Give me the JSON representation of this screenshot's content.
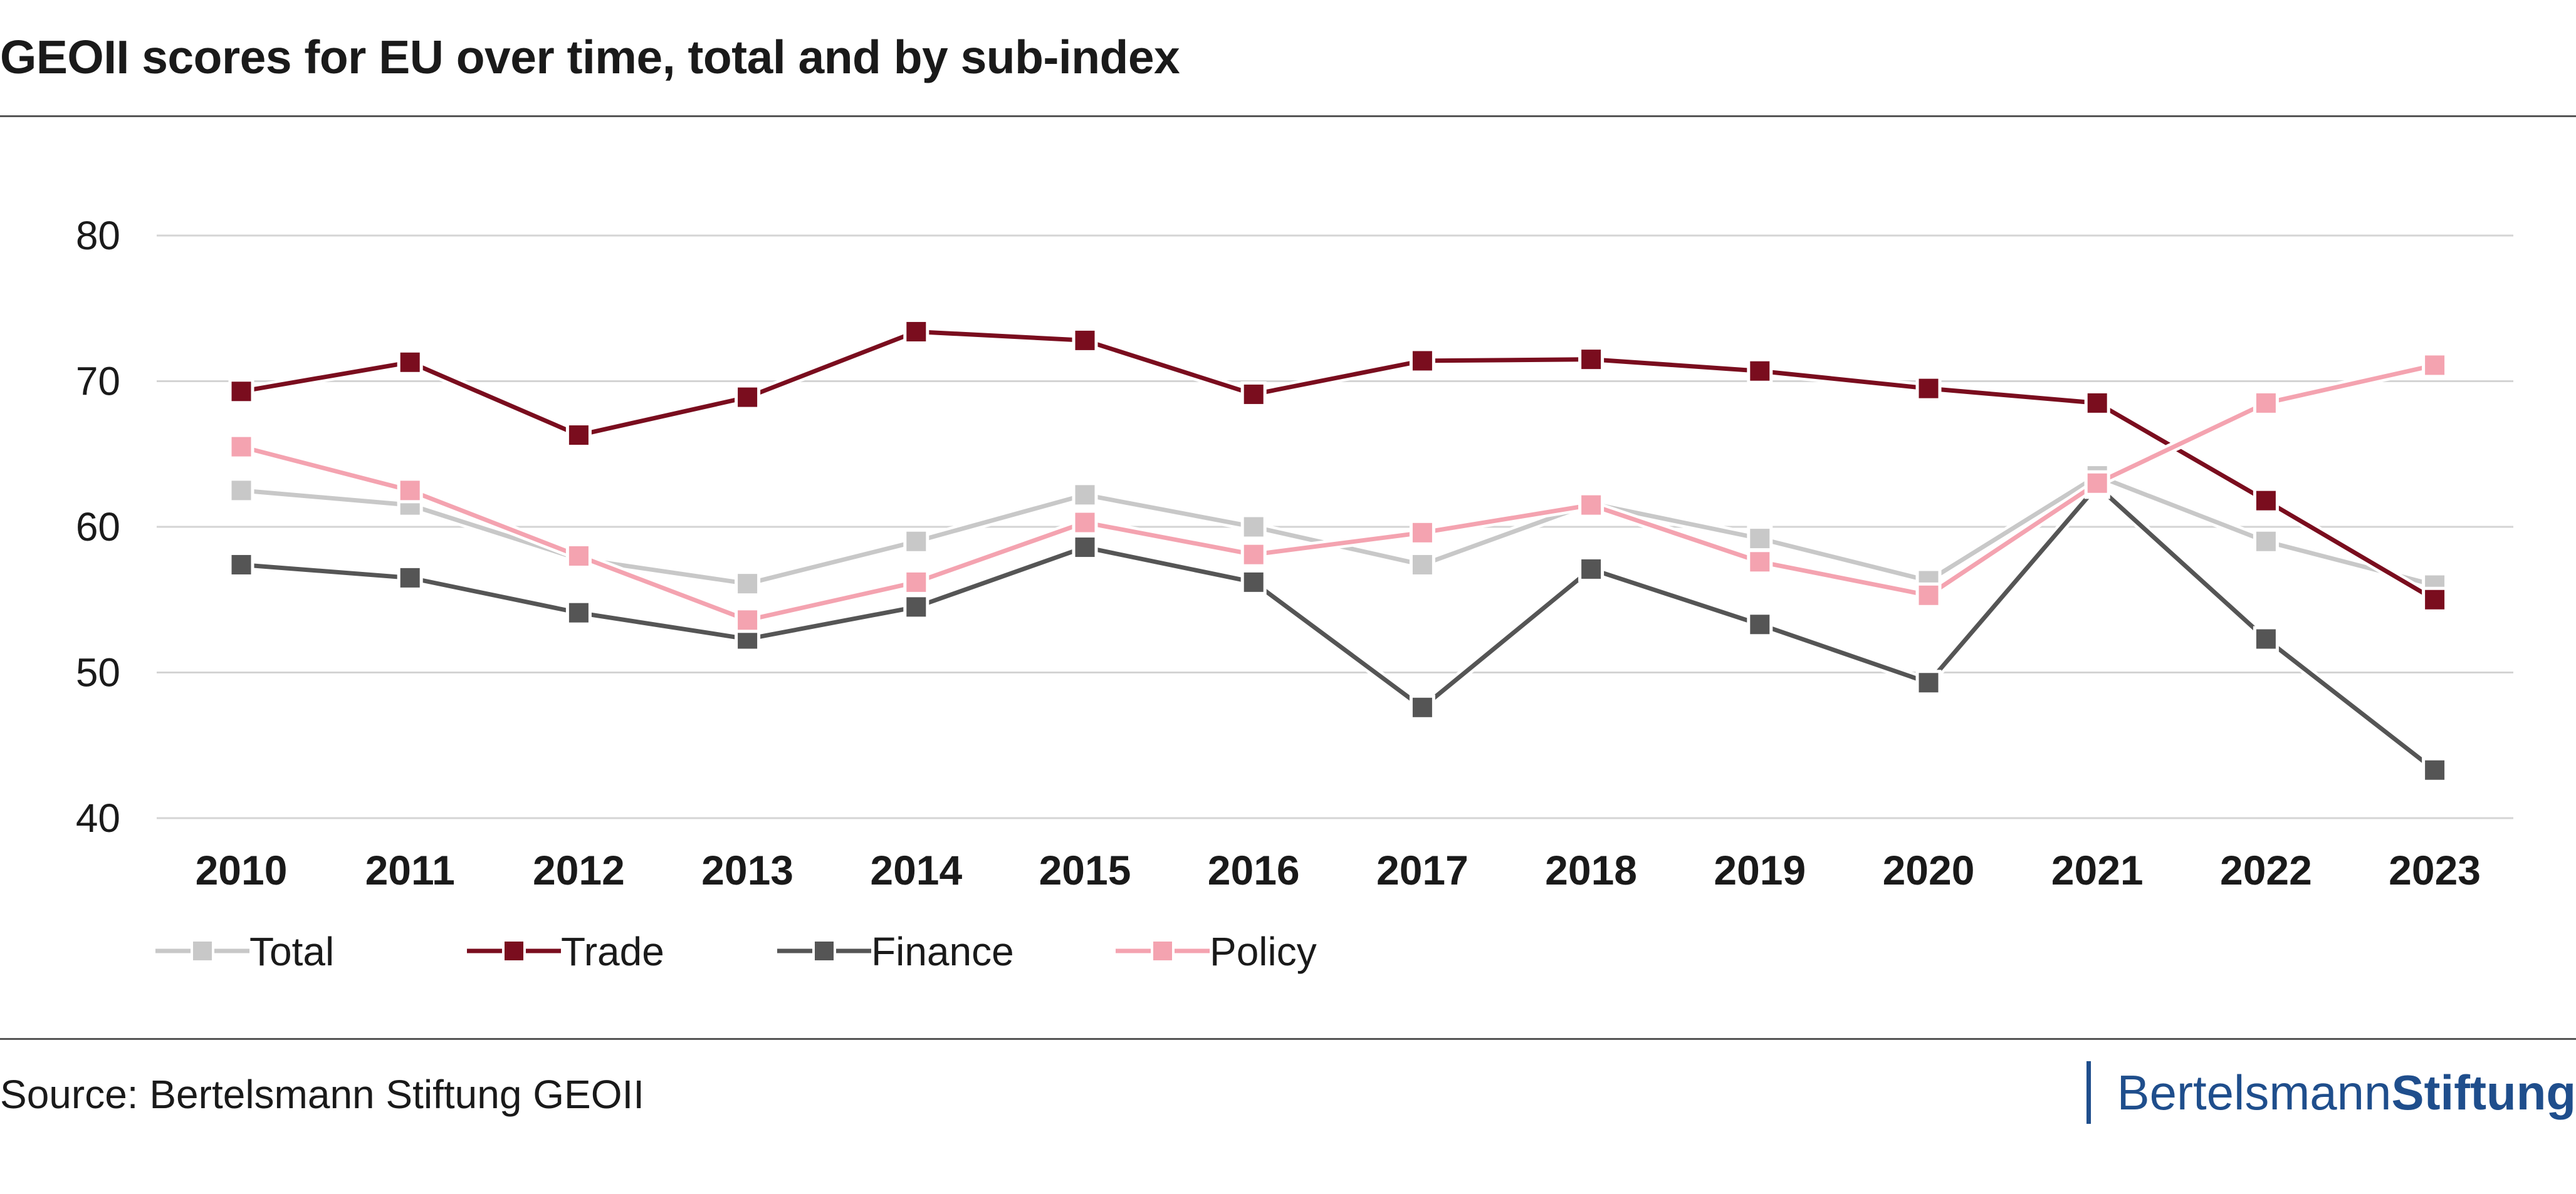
{
  "header": {
    "title": "GEOII scores for EU over time, total and by sub-index"
  },
  "footer": {
    "source": "Source: Bertelsmann Stiftung GEOII",
    "brand_regular": "Bertelsmann",
    "brand_bold": "Stiftung"
  },
  "chart_data": {
    "type": "line",
    "title": "GEOII scores for EU over time, total and by sub-index",
    "xlabel": "",
    "ylabel": "",
    "ylim": [
      40,
      80
    ],
    "yticks": [
      "40",
      "50",
      "60",
      "70",
      "80"
    ],
    "grid": true,
    "legend": "bottom-left",
    "categories": [
      "2010",
      "2011",
      "2012",
      "2013",
      "2014",
      "2015",
      "2016",
      "2017",
      "2018",
      "2019",
      "2020",
      "2021",
      "2022",
      "2023"
    ],
    "series": [
      {
        "name": "Total",
        "color": "#c8c8c8",
        "values": [
          62.5,
          61.5,
          57.8,
          56.1,
          59.0,
          62.2,
          60.0,
          57.4,
          61.6,
          59.2,
          56.3,
          63.5,
          59.0,
          56.0
        ]
      },
      {
        "name": "Trade",
        "color": "#7a0d1e",
        "values": [
          69.3,
          71.3,
          66.3,
          68.9,
          73.4,
          72.8,
          69.1,
          71.4,
          71.5,
          70.7,
          69.5,
          68.5,
          61.8,
          55.0
        ]
      },
      {
        "name": "Finance",
        "color": "#555555",
        "values": [
          57.4,
          56.5,
          54.1,
          52.3,
          54.5,
          58.6,
          56.2,
          47.6,
          57.1,
          53.3,
          49.3,
          62.8,
          52.3,
          43.3
        ]
      },
      {
        "name": "Policy",
        "color": "#f4a3b0",
        "values": [
          65.5,
          62.5,
          58.0,
          53.6,
          56.2,
          60.3,
          58.1,
          59.6,
          61.5,
          57.6,
          55.3,
          63.0,
          68.5,
          71.1
        ]
      }
    ]
  }
}
